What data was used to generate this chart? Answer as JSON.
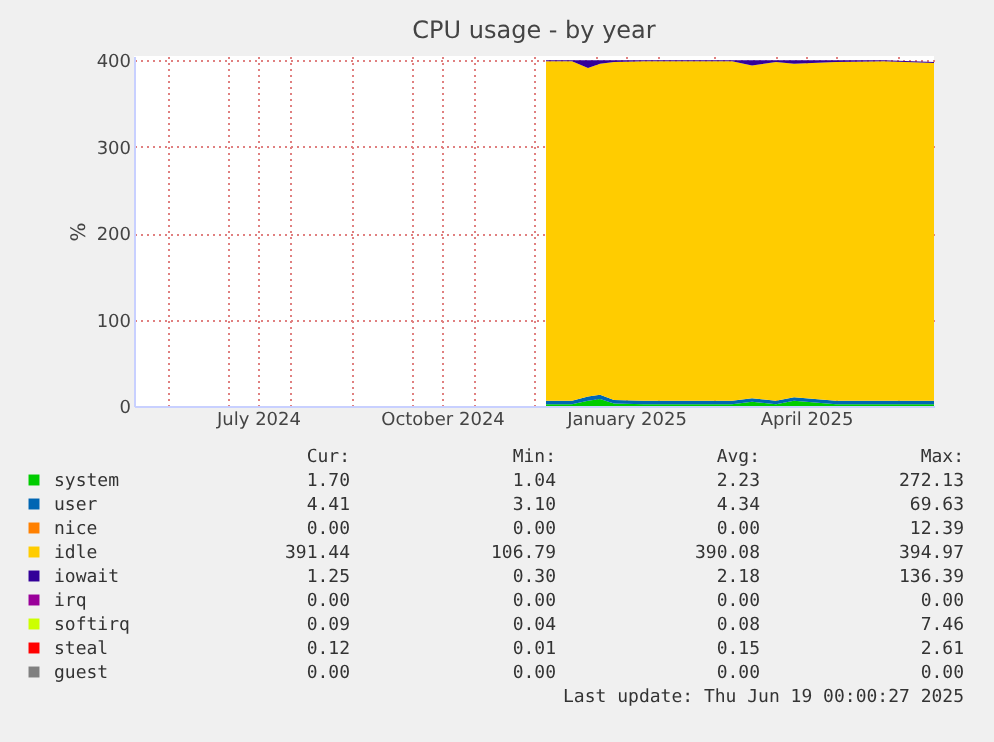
{
  "chart_data": {
    "type": "area",
    "stacked": true,
    "title": "CPU usage - by year",
    "ylabel": "%",
    "x": [
      "2024-12-07",
      "2024-12-20",
      "2024-12-28",
      "2025-01-03",
      "2025-01-10",
      "2025-01-25",
      "2025-02-15",
      "2025-03-10",
      "2025-03-20",
      "2025-04-01",
      "2025-04-10",
      "2025-05-01",
      "2025-05-25",
      "2025-06-19"
    ],
    "series": [
      {
        "name": "system",
        "color": "#00cc00",
        "values": [
          2,
          2,
          6,
          8,
          3,
          2,
          2,
          2,
          5,
          2,
          6,
          2,
          2,
          2
        ]
      },
      {
        "name": "user",
        "color": "#0066b3",
        "values": [
          4,
          4,
          5,
          5,
          4,
          4,
          4,
          4,
          4,
          4,
          4,
          4,
          4,
          4
        ]
      },
      {
        "name": "nice",
        "color": "#ff8000",
        "values": [
          null,
          null,
          null,
          null,
          null,
          null,
          null,
          null,
          null,
          null,
          null,
          null,
          null,
          null
        ]
      },
      {
        "name": "idle",
        "color": "#ffcc00",
        "values": [
          393,
          393,
          380,
          383,
          391,
          393,
          393,
          393,
          385,
          392,
          386,
          392,
          393,
          391
        ]
      },
      {
        "name": "iowait",
        "color": "#330099",
        "values": [
          1,
          1,
          9,
          4,
          2,
          1,
          1,
          1,
          6,
          2,
          4,
          2,
          1,
          1
        ]
      },
      {
        "name": "irq",
        "color": "#990099",
        "values": [
          null,
          null,
          null,
          null,
          null,
          null,
          null,
          null,
          null,
          null,
          null,
          null,
          null,
          null
        ]
      },
      {
        "name": "softirq",
        "color": "#ccff00",
        "values": [
          null,
          null,
          null,
          null,
          null,
          null,
          null,
          null,
          null,
          null,
          null,
          null,
          null,
          null
        ]
      },
      {
        "name": "steal",
        "color": "#ff0000",
        "values": [
          null,
          null,
          null,
          null,
          null,
          null,
          null,
          null,
          null,
          null,
          null,
          null,
          null,
          null
        ]
      },
      {
        "name": "guest",
        "color": "#808080",
        "values": [
          null,
          null,
          null,
          null,
          null,
          null,
          null,
          null,
          null,
          null,
          null,
          null,
          null,
          null
        ]
      }
    ],
    "xlim": [
      "2024-05-15",
      "2025-06-19"
    ],
    "xticks": [
      {
        "value": "2024-06-01",
        "label": null
      },
      {
        "value": "2024-07-01",
        "label": null
      },
      {
        "value": "2024-07-16",
        "label": "July 2024"
      },
      {
        "value": "2024-08-01",
        "label": null
      },
      {
        "value": "2024-09-01",
        "label": null
      },
      {
        "value": "2024-10-01",
        "label": null
      },
      {
        "value": "2024-10-16",
        "label": "October 2024"
      },
      {
        "value": "2024-11-01",
        "label": null
      },
      {
        "value": "2024-12-01",
        "label": null
      },
      {
        "value": "2025-01-01",
        "label": null
      },
      {
        "value": "2025-01-16",
        "label": "January 2025"
      },
      {
        "value": "2025-02-01",
        "label": null
      },
      {
        "value": "2025-03-01",
        "label": null
      },
      {
        "value": "2025-04-01",
        "label": null
      },
      {
        "value": "2025-04-16",
        "label": "April 2025"
      },
      {
        "value": "2025-05-01",
        "label": null
      },
      {
        "value": "2025-06-01",
        "label": null
      }
    ],
    "ylim": [
      0,
      405
    ],
    "yticks": [
      0,
      100,
      200,
      300,
      400
    ],
    "grid": true,
    "legend": "bottom",
    "annotations": [
      "Cur:",
      "Min:",
      "Avg:",
      "Max:",
      "1.70",
      "1.04",
      "2.23",
      "272.13",
      "4.41",
      "3.10",
      "4.34",
      "69.63",
      "0.00",
      "0.00",
      "0.00",
      "12.39",
      "391.44",
      "106.79",
      "390.08",
      "394.97",
      "1.25",
      "0.30",
      "2.18",
      "136.39",
      "0.00",
      "0.00",
      "0.00",
      "0.00",
      "0.09",
      "0.04",
      "0.08",
      "7.46",
      "0.12",
      "0.01",
      "0.15",
      "2.61",
      "0.00",
      "0.00",
      "0.00",
      "0.00",
      "Last update: Thu Jun 19 00:00:27 2025"
    ]
  }
}
